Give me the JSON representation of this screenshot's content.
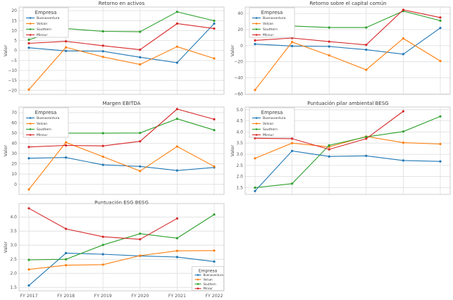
{
  "companies": [
    "Buenaventura",
    "Volcan",
    "Southern",
    "Minsur"
  ],
  "palette": {
    "buenaventura": "#1f77b4",
    "volcan": "#ff7f0e",
    "southern": "#2ca02c",
    "minsur": "#d62728",
    "grid": "#dedede",
    "plot_border": "#cfcfcf",
    "tick_text": "#555555",
    "title_text": "#3a3a3a"
  },
  "chart_data": [
    {
      "type": "line",
      "title": "Retorno en activos",
      "ylabel": "Valor",
      "categories": [
        "FY 2017",
        "FY 2018",
        "FY 2019",
        "FY 2020",
        "FY 2021",
        "FY 2022"
      ],
      "x_tick_labels_visible": false,
      "ylim": [
        -22,
        21.8
      ],
      "yticks": [
        -20,
        -15,
        -10,
        -5,
        0,
        5,
        10,
        15,
        20
      ],
      "ytick_decimals": 0,
      "grid": true,
      "legend": {
        "title": "Empresa",
        "position": "upper left"
      },
      "series": [
        {
          "name": "Buenaventura",
          "color": "#1f77b4",
          "values": [
            1.4,
            -0.2,
            -0.4,
            -3.4,
            -6.1,
            13.5
          ]
        },
        {
          "name": "Volcan",
          "color": "#ff7f0e",
          "values": [
            -19.6,
            1.6,
            -3.2,
            -7.0,
            1.9,
            -4.0
          ]
        },
        {
          "name": "Southern",
          "color": "#2ca02c",
          "values": [
            5.4,
            11.0,
            9.6,
            9.4,
            19.4,
            14.9
          ]
        },
        {
          "name": "Minsur",
          "color": "#d62728",
          "values": [
            3.6,
            4.6,
            2.4,
            0.4,
            13.5,
            11.0
          ]
        }
      ]
    },
    {
      "type": "line",
      "title": "Retorno sobre el capital común",
      "ylabel": "Valor",
      "categories": [
        "FY 2017",
        "FY 2018",
        "FY 2019",
        "FY 2020",
        "FY 2021",
        "FY 2022"
      ],
      "x_tick_labels_visible": false,
      "ylim": [
        -60.5,
        48
      ],
      "yticks": [
        -60,
        -40,
        -20,
        0,
        20,
        40
      ],
      "ytick_decimals": 0,
      "grid": true,
      "legend": {
        "title": "Empresa",
        "position": "upper left"
      },
      "series": [
        {
          "name": "Buenaventura",
          "color": "#1f77b4",
          "values": [
            2.0,
            -0.5,
            -1.0,
            -5.0,
            -10.5,
            22.0
          ]
        },
        {
          "name": "Volcan",
          "color": "#ff7f0e",
          "values": [
            -55.0,
            4.5,
            -12.0,
            -30.0,
            9.0,
            -19.0
          ]
        },
        {
          "name": "Southern",
          "color": "#2ca02c",
          "values": [
            12.0,
            24.5,
            22.5,
            22.5,
            43.0,
            31.0
          ]
        },
        {
          "name": "Minsur",
          "color": "#d62728",
          "values": [
            6.5,
            9.5,
            5.0,
            1.0,
            44.5,
            35.0
          ]
        }
      ]
    },
    {
      "type": "line",
      "title": "Margen EBITDA",
      "ylabel": "Valor",
      "categories": [
        "FY 2017",
        "FY 2018",
        "FY 2019",
        "FY 2020",
        "FY 2021",
        "FY 2022"
      ],
      "x_tick_labels_visible": false,
      "ylim": [
        -9.8,
        75.5
      ],
      "yticks": [
        0,
        10,
        20,
        30,
        40,
        50,
        60,
        70
      ],
      "ytick_decimals": 0,
      "grid": true,
      "legend": {
        "title": "Empresa",
        "position": "upper left"
      },
      "series": [
        {
          "name": "Buenaventura",
          "color": "#1f77b4",
          "values": [
            25.5,
            26.2,
            19.0,
            17.5,
            13.5,
            16.5
          ]
        },
        {
          "name": "Volcan",
          "color": "#ff7f0e",
          "values": [
            -5.0,
            41.0,
            27.0,
            13.0,
            37.0,
            17.5
          ]
        },
        {
          "name": "Southern",
          "color": "#2ca02c",
          "values": [
            49.5,
            50.0,
            50.0,
            50.2,
            64.0,
            53.0
          ]
        },
        {
          "name": "Minsur",
          "color": "#d62728",
          "values": [
            36.5,
            38.0,
            37.5,
            42.0,
            73.5,
            63.5
          ]
        }
      ]
    },
    {
      "type": "line",
      "title": "Puntuación pilar ambiental BESG",
      "ylabel": "Valor",
      "categories": [
        "FY 2017",
        "FY 2018",
        "FY 2019",
        "FY 2020",
        "FY 2021",
        "FY 2022"
      ],
      "x_tick_labels_visible": false,
      "ylim": [
        1.2,
        5.12
      ],
      "yticks": [
        1.5,
        2.0,
        2.5,
        3.0,
        3.5,
        4.0,
        4.5,
        5.0
      ],
      "ytick_decimals": 1,
      "grid": true,
      "legend": {
        "title": "Empresa",
        "position": "upper left"
      },
      "series": [
        {
          "name": "Buenaventura",
          "color": "#1f77b4",
          "values": [
            1.35,
            3.15,
            2.9,
            2.93,
            2.72,
            2.68
          ]
        },
        {
          "name": "Volcan",
          "color": "#ff7f0e",
          "values": [
            2.82,
            3.5,
            3.33,
            3.8,
            3.52,
            3.46
          ]
        },
        {
          "name": "Southern",
          "color": "#2ca02c",
          "values": [
            1.5,
            1.68,
            3.4,
            3.78,
            4.02,
            4.7
          ]
        },
        {
          "name": "Minsur",
          "color": "#d62728",
          "values": [
            3.72,
            3.7,
            3.22,
            3.7,
            4.93,
            null
          ]
        }
      ]
    },
    {
      "type": "line",
      "title": "Puntuación ESG BESG",
      "ylabel": "Valor",
      "categories": [
        "FY 2017",
        "FY 2018",
        "FY 2019",
        "FY 2020",
        "FY 2021",
        "FY 2022"
      ],
      "x_tick_labels_visible": true,
      "ylim": [
        1.38,
        4.48
      ],
      "yticks": [
        1.5,
        2.0,
        2.5,
        3.0,
        3.5,
        4.0
      ],
      "ytick_decimals": 1,
      "grid": true,
      "legend": {
        "title": "Empresa",
        "position": "lower right"
      },
      "series": [
        {
          "name": "Buenaventura",
          "color": "#1f77b4",
          "values": [
            1.57,
            2.72,
            2.68,
            2.62,
            2.58,
            2.42
          ]
        },
        {
          "name": "Volcan",
          "color": "#ff7f0e",
          "values": [
            2.14,
            2.29,
            2.31,
            2.63,
            2.8,
            2.81
          ]
        },
        {
          "name": "Southern",
          "color": "#2ca02c",
          "values": [
            2.48,
            2.5,
            3.01,
            3.41,
            3.25,
            4.09
          ]
        },
        {
          "name": "Minsur",
          "color": "#d62728",
          "values": [
            4.31,
            3.58,
            3.3,
            3.21,
            3.95,
            null
          ]
        }
      ]
    }
  ]
}
